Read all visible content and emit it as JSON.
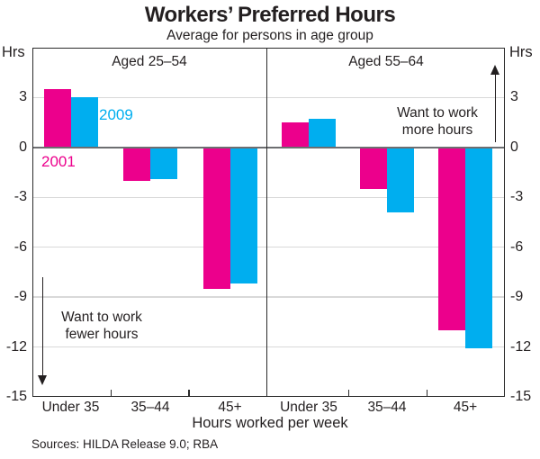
{
  "title": "Workers’ Preferred Hours",
  "subtitle": "Average for persons in age group",
  "axis": {
    "unit_left": "Hrs",
    "unit_right": "Hrs"
  },
  "annotations": {
    "fewer": {
      "line1": "Want to work",
      "line2": "fewer hours"
    },
    "more": {
      "line1": "Want to work",
      "line2": "more hours"
    }
  },
  "series_labels": {
    "s2001": "2001",
    "s2009": "2009"
  },
  "colors": {
    "series_2001": "#EC008C",
    "series_2009": "#00AEEF",
    "gridline": "#d9d9d9",
    "zero_line": "#6d6e71",
    "frame": "#2b2b2b"
  },
  "footer": {
    "sources": "Sources: HILDA Release 9.0; RBA"
  },
  "chart_data": {
    "type": "bar",
    "title": "Workers’ Preferred Hours",
    "subtitle": "Average for persons in age group",
    "xlabel": "Hours worked per week",
    "ylabel": "Hrs",
    "ylim": [
      -15,
      6
    ],
    "yticks": [
      3,
      0,
      -3,
      -6,
      -9,
      -12,
      -15
    ],
    "grid": true,
    "categories": [
      "Under 35",
      "35–44",
      "45+"
    ],
    "panels": [
      {
        "label": "Aged 25–54",
        "series": [
          {
            "name": "2001",
            "color": "#EC008C",
            "values": [
              3.5,
              -2.0,
              -8.5
            ]
          },
          {
            "name": "2009",
            "color": "#00AEEF",
            "values": [
              3.0,
              -1.9,
              -8.2
            ]
          }
        ]
      },
      {
        "label": "Aged 55–64",
        "series": [
          {
            "name": "2001",
            "color": "#EC008C",
            "values": [
              1.5,
              -2.5,
              -11.0
            ]
          },
          {
            "name": "2009",
            "color": "#00AEEF",
            "values": [
              1.7,
              -3.9,
              -12.1
            ]
          }
        ]
      }
    ]
  }
}
